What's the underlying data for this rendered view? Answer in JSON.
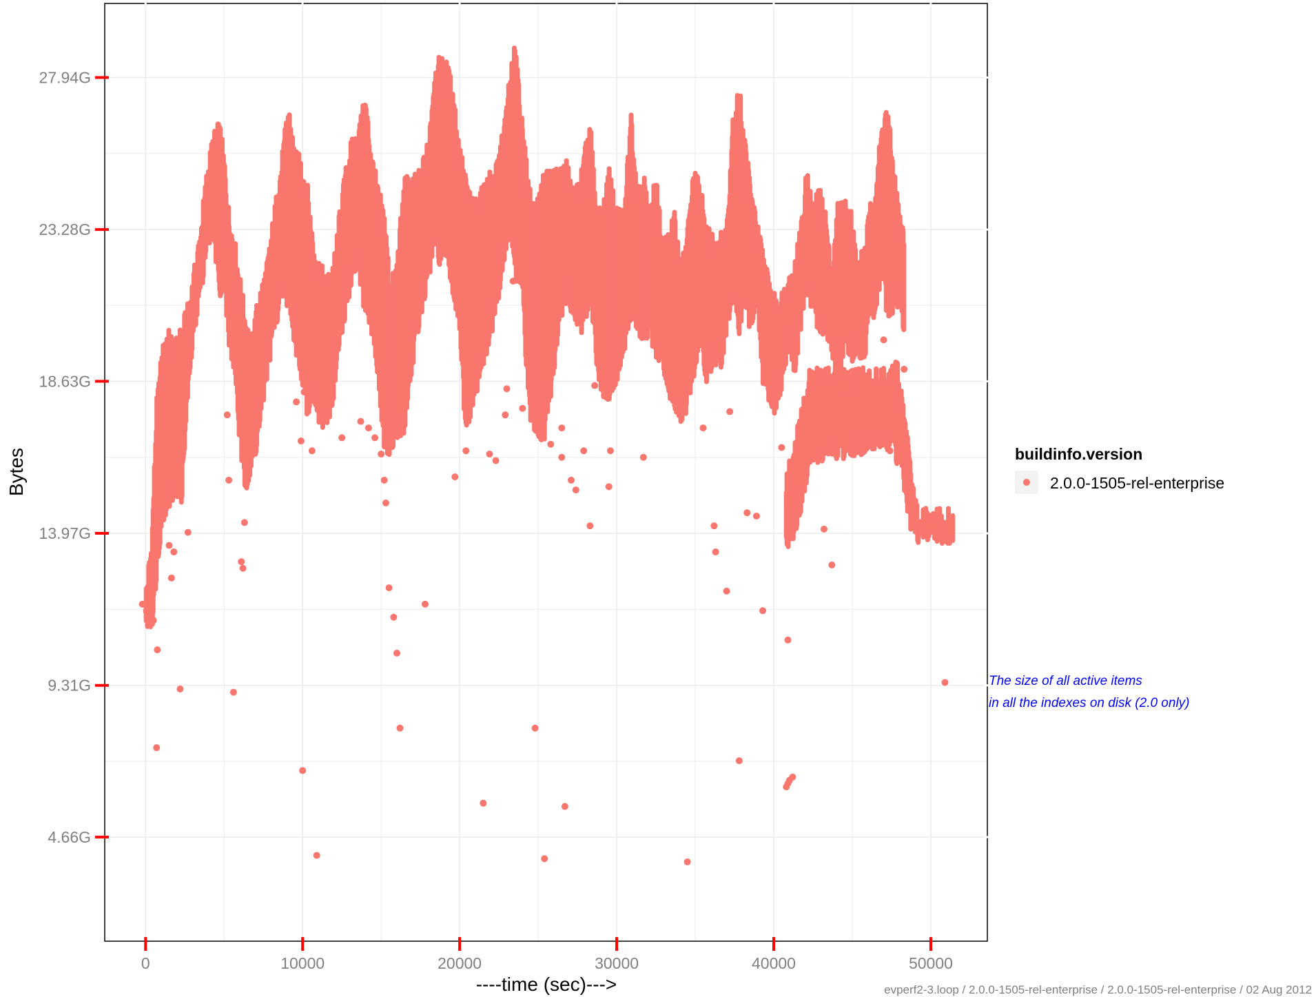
{
  "chart_data": {
    "type": "scatter",
    "xlabel": "----time (sec)--->",
    "ylabel": "Bytes",
    "xlim": [
      -2600,
      53600
    ],
    "ylim": [
      1.47,
      30.21
    ],
    "x_ticks": [
      0,
      10000,
      20000,
      30000,
      40000,
      50000
    ],
    "x_tick_labels": [
      "0",
      "10000",
      "20000",
      "30000",
      "40000",
      "50000"
    ],
    "y_ticks": [
      4.66,
      9.31,
      13.97,
      18.63,
      23.28,
      27.94
    ],
    "y_tick_labels": [
      "4.66G",
      "9.31G",
      "13.97G",
      "18.63G",
      "23.28G",
      "27.94G"
    ],
    "y_minor_ticks": [
      6.985,
      11.64,
      16.3,
      20.955,
      25.61
    ],
    "x_minor_ticks": [
      5000,
      15000,
      25000,
      35000,
      45000
    ],
    "grid": true,
    "tick_mark_color": "#ff0000",
    "point_color": "#f8766d",
    "legend": {
      "title": "buildinfo.version",
      "position": "right",
      "entries": [
        "2.0.0-1505-rel-enterprise"
      ]
    },
    "annotation": {
      "lines": [
        "The size of all active items",
        "in all the indexes on disk (2.0 only)"
      ],
      "color": "#0000ff"
    },
    "caption": "evperf2-3.loop / 2.0.0-1505-rel-enterprise / 2.0.0-1505-rel-enterprise / 02 Aug 2012",
    "series": [
      {
        "name": "2.0.0-1505-rel-enterprise",
        "envelope": [
          [
            0,
            11.5,
            11.9
          ],
          [
            400,
            11.4,
            13.5
          ],
          [
            700,
            13.0,
            17.6
          ],
          [
            1000,
            14.5,
            19.0
          ],
          [
            1300,
            15.0,
            19.9
          ],
          [
            1600,
            15.2,
            19.7
          ],
          [
            2000,
            15.5,
            19.5
          ],
          [
            2300,
            15.3,
            20.0
          ],
          [
            2700,
            18.5,
            20.6
          ],
          [
            3100,
            20.5,
            21.7
          ],
          [
            3500,
            21.6,
            23.0
          ],
          [
            3900,
            23.0,
            24.7
          ],
          [
            4300,
            23.5,
            25.8
          ],
          [
            4700,
            21.6,
            26.2
          ],
          [
            5000,
            22.0,
            25.2
          ],
          [
            5300,
            20.0,
            23.5
          ],
          [
            5700,
            19.2,
            22.5
          ],
          [
            6000,
            17.0,
            21.5
          ],
          [
            6300,
            15.7,
            20.5
          ],
          [
            6700,
            16.0,
            19.5
          ],
          [
            7200,
            17.2,
            20.9
          ],
          [
            7700,
            19.0,
            21.8
          ],
          [
            8200,
            20.5,
            23.5
          ],
          [
            8700,
            21.5,
            25.2
          ],
          [
            9100,
            21.2,
            26.8
          ],
          [
            9500,
            20.0,
            25.3
          ],
          [
            9900,
            19.2,
            25.1
          ],
          [
            10300,
            18.0,
            24.3
          ],
          [
            10700,
            18.5,
            22.5
          ],
          [
            11100,
            17.5,
            21.9
          ],
          [
            11500,
            17.5,
            21.4
          ],
          [
            12000,
            18.5,
            22.0
          ],
          [
            12500,
            20.5,
            24.0
          ],
          [
            13000,
            21.5,
            25.5
          ],
          [
            13500,
            22.5,
            25.9
          ],
          [
            14000,
            21.0,
            27.0
          ],
          [
            14400,
            20.5,
            25.3
          ],
          [
            14800,
            19.0,
            24.2
          ],
          [
            15200,
            17.0,
            23.5
          ],
          [
            15600,
            16.7,
            21.2
          ],
          [
            16000,
            17.0,
            22.0
          ],
          [
            16500,
            17.5,
            24.5
          ],
          [
            17000,
            19.5,
            24.5
          ],
          [
            17500,
            21.0,
            24.7
          ],
          [
            18000,
            22.0,
            25.7
          ],
          [
            18400,
            23.0,
            27.9
          ],
          [
            18800,
            22.5,
            28.2
          ],
          [
            19200,
            22.8,
            28.0
          ],
          [
            19600,
            21.5,
            27.2
          ],
          [
            20000,
            20.5,
            25.5
          ],
          [
            20400,
            17.0,
            24.5
          ],
          [
            20800,
            18.2,
            23.8
          ],
          [
            21300,
            19.0,
            24.0
          ],
          [
            21800,
            20.0,
            24.6
          ],
          [
            22300,
            21.0,
            24.8
          ],
          [
            22800,
            22.5,
            26.0
          ],
          [
            23200,
            23.5,
            27.7
          ],
          [
            23600,
            22.0,
            28.7
          ],
          [
            24000,
            21.5,
            26.0
          ],
          [
            24400,
            18.0,
            24.4
          ],
          [
            24800,
            17.5,
            23.6
          ],
          [
            25300,
            17.0,
            24.5
          ],
          [
            25800,
            18.5,
            24.8
          ],
          [
            26300,
            20.5,
            24.8
          ],
          [
            26800,
            21.5,
            25.0
          ],
          [
            27300,
            21.0,
            24.0
          ],
          [
            27800,
            20.5,
            24.8
          ],
          [
            28300,
            21.5,
            26.3
          ],
          [
            28700,
            19.5,
            23.5
          ],
          [
            29100,
            18.5,
            23.5
          ],
          [
            29500,
            18.5,
            24.8
          ],
          [
            30000,
            19.0,
            23.5
          ],
          [
            30500,
            20.0,
            23.5
          ],
          [
            30900,
            21.0,
            26.7
          ],
          [
            31300,
            20.5,
            24.2
          ],
          [
            31700,
            20.0,
            24.8
          ],
          [
            32100,
            20.5,
            23.2
          ],
          [
            32500,
            19.7,
            24.8
          ],
          [
            32900,
            19.5,
            22.3
          ],
          [
            33300,
            18.5,
            22.9
          ],
          [
            33700,
            18.2,
            23.4
          ],
          [
            34100,
            17.7,
            21.7
          ],
          [
            34500,
            18.2,
            23.0
          ],
          [
            34900,
            19.0,
            24.7
          ],
          [
            35300,
            20.5,
            24.4
          ],
          [
            35700,
            19.0,
            23.0
          ],
          [
            36200,
            19.5,
            22.8
          ],
          [
            36700,
            19.5,
            22.8
          ],
          [
            37000,
            20.5,
            23.0
          ],
          [
            37400,
            21.5,
            26.5
          ],
          [
            37800,
            20.5,
            27.3
          ],
          [
            38100,
            21.5,
            26.0
          ],
          [
            38500,
            20.5,
            24.4
          ],
          [
            38900,
            21.5,
            23.2
          ],
          [
            39300,
            19.0,
            22.3
          ],
          [
            39700,
            18.4,
            21.4
          ],
          [
            40100,
            18.0,
            20.8
          ],
          [
            40500,
            18.8,
            21.0
          ],
          [
            40900,
            20.0,
            21.5
          ],
          [
            41300,
            19.2,
            21.8
          ],
          [
            41700,
            20.5,
            23.0
          ],
          [
            42100,
            21.8,
            24.7
          ],
          [
            42500,
            21.0,
            23.6
          ],
          [
            42900,
            20.5,
            24.2
          ],
          [
            43300,
            20.5,
            23.5
          ],
          [
            43700,
            20.0,
            21.5
          ],
          [
            44100,
            18.5,
            23.8
          ],
          [
            44500,
            20.0,
            23.8
          ],
          [
            44900,
            19.5,
            23.6
          ],
          [
            45300,
            20.0,
            22.0
          ],
          [
            45700,
            19.4,
            22.3
          ],
          [
            46100,
            20.5,
            23.5
          ],
          [
            46500,
            21.0,
            24.5
          ],
          [
            46900,
            22.5,
            26.2
          ],
          [
            47200,
            21.0,
            26.8
          ],
          [
            47600,
            21.0,
            25.0
          ],
          [
            48000,
            21.5,
            23.5
          ],
          [
            48300,
            20.0,
            22.8
          ]
        ],
        "bands": [
          [
            40800,
            13.8,
            15.5
          ],
          [
            41000,
            14.0,
            15.9
          ],
          [
            41300,
            14.3,
            16.3
          ],
          [
            41600,
            14.8,
            17.0
          ],
          [
            41900,
            15.5,
            17.7
          ],
          [
            42300,
            16.5,
            18.6
          ],
          [
            47500,
            17.0,
            18.6
          ],
          [
            47800,
            16.5,
            19.0
          ],
          [
            48100,
            16.2,
            18.2
          ],
          [
            48700,
            14.5,
            15.8
          ],
          [
            48900,
            14.3,
            14.9
          ],
          [
            49200,
            14.1,
            14.3
          ],
          [
            50000,
            14.1,
            14.3
          ],
          [
            51000,
            14.1,
            14.3
          ],
          [
            51400,
            14.1,
            14.3
          ]
        ],
        "outliers": [
          [
            -200,
            11.8
          ],
          [
            100,
            11.4
          ],
          [
            300,
            11.6
          ],
          [
            500,
            11.3
          ],
          [
            700,
            7.4
          ],
          [
            750,
            10.4
          ],
          [
            1500,
            13.6
          ],
          [
            1650,
            12.6
          ],
          [
            1800,
            13.4
          ],
          [
            2200,
            9.2
          ],
          [
            2700,
            14.0
          ],
          [
            5200,
            17.6
          ],
          [
            5300,
            15.6
          ],
          [
            5600,
            9.1
          ],
          [
            6100,
            13.1
          ],
          [
            6200,
            12.9
          ],
          [
            6300,
            14.3
          ],
          [
            9600,
            18.0
          ],
          [
            9900,
            16.8
          ],
          [
            10000,
            6.7
          ],
          [
            10100,
            18.3
          ],
          [
            10600,
            16.5
          ],
          [
            10900,
            4.1
          ],
          [
            12500,
            16.9
          ],
          [
            13700,
            17.4
          ],
          [
            14200,
            17.2
          ],
          [
            14600,
            16.9
          ],
          [
            15000,
            16.4
          ],
          [
            15200,
            15.6
          ],
          [
            15300,
            14.9
          ],
          [
            15500,
            12.3
          ],
          [
            15800,
            11.4
          ],
          [
            16000,
            10.3
          ],
          [
            16200,
            8.0
          ],
          [
            17800,
            11.8
          ],
          [
            19700,
            15.7
          ],
          [
            20400,
            16.5
          ],
          [
            21500,
            5.7
          ],
          [
            21900,
            16.4
          ],
          [
            22300,
            16.2
          ],
          [
            22900,
            17.6
          ],
          [
            23000,
            18.4
          ],
          [
            23400,
            21.7
          ],
          [
            24000,
            17.8
          ],
          [
            24800,
            8.0
          ],
          [
            25400,
            4.0
          ],
          [
            25800,
            16.7
          ],
          [
            26500,
            17.2
          ],
          [
            26500,
            16.3
          ],
          [
            26700,
            5.6
          ],
          [
            27100,
            15.6
          ],
          [
            27400,
            15.3
          ],
          [
            27900,
            16.5
          ],
          [
            28300,
            14.2
          ],
          [
            28600,
            18.5
          ],
          [
            29500,
            15.4
          ],
          [
            29600,
            16.5
          ],
          [
            31700,
            16.3
          ],
          [
            34500,
            3.9
          ],
          [
            35500,
            17.2
          ],
          [
            36200,
            14.2
          ],
          [
            36300,
            13.4
          ],
          [
            37000,
            12.2
          ],
          [
            37200,
            17.7
          ],
          [
            37800,
            7.0
          ],
          [
            38300,
            14.6
          ],
          [
            38900,
            14.5
          ],
          [
            39300,
            11.6
          ],
          [
            40500,
            16.6
          ],
          [
            40900,
            10.7
          ],
          [
            40800,
            6.2
          ],
          [
            40900,
            6.3
          ],
          [
            41000,
            6.4
          ],
          [
            41200,
            6.5
          ],
          [
            43200,
            14.1
          ],
          [
            43700,
            13.0
          ],
          [
            44300,
            18.2
          ],
          [
            47000,
            19.9
          ],
          [
            47300,
            17.1
          ],
          [
            47400,
            16.5
          ],
          [
            48000,
            17.5
          ],
          [
            48300,
            19.0
          ],
          [
            50900,
            9.4
          ]
        ]
      }
    ]
  }
}
